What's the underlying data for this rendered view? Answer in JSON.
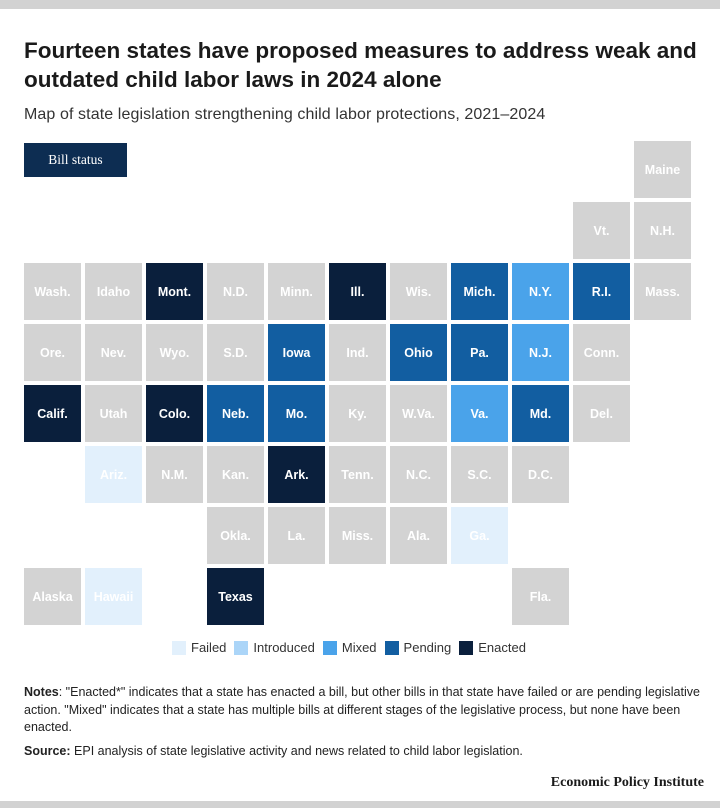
{
  "title": "Fourteen states have proposed measures to address weak and outdated child labor laws in 2024 alone",
  "subtitle": "Map of state legislation strengthening child labor protections, 2021–2024",
  "badge": "Bill status",
  "status_colors": {
    "none": "#d3d3d3",
    "failed": "#e2f0fc",
    "introduced": "#abd5f8",
    "mixed": "#4aa3ea",
    "pending": "#125ea1",
    "enacted": "#0a1f3c"
  },
  "legend": [
    {
      "label": "Failed",
      "status": "failed"
    },
    {
      "label": "Introduced",
      "status": "introduced"
    },
    {
      "label": "Mixed",
      "status": "mixed"
    },
    {
      "label": "Pending",
      "status": "pending"
    },
    {
      "label": "Enacted",
      "status": "enacted"
    }
  ],
  "states": [
    {
      "name": "Maine",
      "status": "none"
    },
    {
      "name": "Vt.",
      "status": "none"
    },
    {
      "name": "N.H.",
      "status": "none"
    },
    {
      "name": "Wash.",
      "status": "none"
    },
    {
      "name": "Idaho",
      "status": "none"
    },
    {
      "name": "Mont.",
      "status": "enacted"
    },
    {
      "name": "N.D.",
      "status": "none"
    },
    {
      "name": "Minn.",
      "status": "none"
    },
    {
      "name": "Ill.",
      "status": "enacted"
    },
    {
      "name": "Wis.",
      "status": "none"
    },
    {
      "name": "Mich.",
      "status": "pending"
    },
    {
      "name": "N.Y.",
      "status": "mixed"
    },
    {
      "name": "R.I.",
      "status": "pending"
    },
    {
      "name": "Mass.",
      "status": "none"
    },
    {
      "name": "Ore.",
      "status": "none"
    },
    {
      "name": "Nev.",
      "status": "none"
    },
    {
      "name": "Wyo.",
      "status": "none"
    },
    {
      "name": "S.D.",
      "status": "none"
    },
    {
      "name": "Iowa",
      "status": "pending"
    },
    {
      "name": "Ind.",
      "status": "none"
    },
    {
      "name": "Ohio",
      "status": "pending"
    },
    {
      "name": "Pa.",
      "status": "pending"
    },
    {
      "name": "N.J.",
      "status": "mixed"
    },
    {
      "name": "Conn.",
      "status": "none"
    },
    {
      "name": "Calif.",
      "status": "enacted"
    },
    {
      "name": "Utah",
      "status": "none"
    },
    {
      "name": "Colo.",
      "status": "enacted"
    },
    {
      "name": "Neb.",
      "status": "pending"
    },
    {
      "name": "Mo.",
      "status": "pending"
    },
    {
      "name": "Ky.",
      "status": "none"
    },
    {
      "name": "W.Va.",
      "status": "none"
    },
    {
      "name": "Va.",
      "status": "mixed"
    },
    {
      "name": "Md.",
      "status": "pending"
    },
    {
      "name": "Del.",
      "status": "none"
    },
    {
      "name": "Ariz.",
      "status": "failed"
    },
    {
      "name": "N.M.",
      "status": "none"
    },
    {
      "name": "Kan.",
      "status": "none"
    },
    {
      "name": "Ark.",
      "status": "enacted"
    },
    {
      "name": "Tenn.",
      "status": "none"
    },
    {
      "name": "N.C.",
      "status": "none"
    },
    {
      "name": "S.C.",
      "status": "none"
    },
    {
      "name": "D.C.",
      "status": "none"
    },
    {
      "name": "Okla.",
      "status": "none"
    },
    {
      "name": "La.",
      "status": "none"
    },
    {
      "name": "Miss.",
      "status": "none"
    },
    {
      "name": "Ala.",
      "status": "none"
    },
    {
      "name": "Ga.",
      "status": "failed"
    },
    {
      "name": "Alaska",
      "status": "none"
    },
    {
      "name": "Hawaii",
      "status": "failed"
    },
    {
      "name": "Texas",
      "status": "enacted"
    },
    {
      "name": "Fla.",
      "status": "none"
    }
  ],
  "notes": {
    "label": "Notes",
    "text": ": \"Enacted*\" indicates that a state has enacted a bill, but other bills in that state have failed or are pending legislative action. \"Mixed\" indicates that a state has multiple bills at different stages of the legislative process, but none have been enacted."
  },
  "source": {
    "label": "Source:",
    "text": " EPI analysis of state legislative activity and news related to child labor legislation."
  },
  "brand": "Economic Policy Institute"
}
